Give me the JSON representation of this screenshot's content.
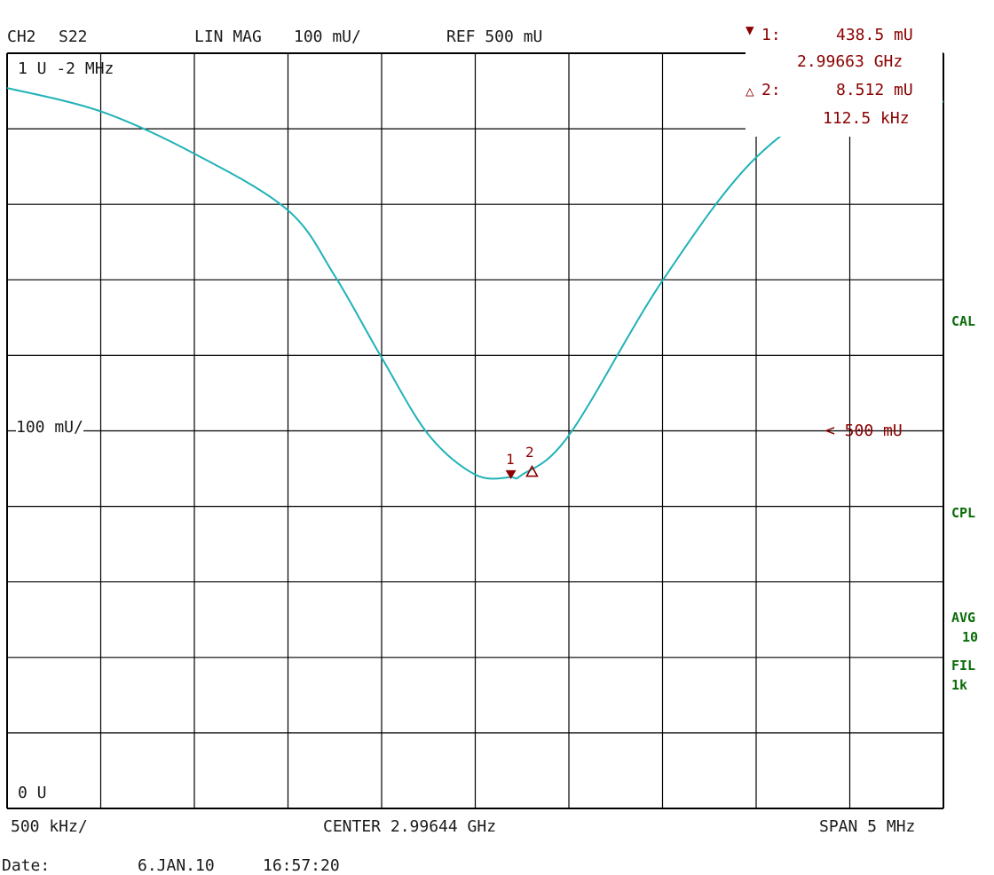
{
  "header": {
    "channel": "CH2",
    "param": "S22",
    "format": "LIN MAG",
    "scale": "100 mU/",
    "ref": "REF 500 mU"
  },
  "markers": {
    "m1": {
      "label": "1:",
      "value": "438.5 mU",
      "freq": "2.99663 GHz"
    },
    "m2": {
      "label": "2:",
      "value": "8.512 mU",
      "freq": "112.5 kHz"
    },
    "m1_tag": "1",
    "m2_tag": "2"
  },
  "grid_labels": {
    "top_left": "1 U -2 MHz",
    "scale_mid": "100 mU/",
    "bottom_left": "0 U",
    "ref_right": "< 500 mU"
  },
  "side_labels": {
    "cal": "CAL",
    "cpl": "CPL",
    "avg": "AVG",
    "avg_n": "10",
    "fil": "FIL",
    "fil_bw": "1k"
  },
  "footer": {
    "per_div": "500 kHz/",
    "center": "CENTER 2.99644 GHz",
    "span": "SPAN 5 MHz",
    "date_label": "Date:",
    "date": "6.JAN.10",
    "time": "16:57:20"
  },
  "colors": {
    "trace": "#20b2b8",
    "marker": "#8b0000",
    "grid": "#000000",
    "status": "#0a6b0a"
  },
  "chart_data": {
    "type": "line",
    "xlabel": "",
    "ylabel": "",
    "xlim": [
      2.99394,
      2.99894
    ],
    "ylim": [
      0,
      1
    ],
    "x_unit": "GHz",
    "y_unit": "U",
    "grid": true,
    "series": [
      {
        "x": [
          2.99394,
          2.99444,
          2.99494,
          2.99544,
          2.99569,
          2.99594,
          2.99619,
          2.99644,
          2.99663,
          2.99669,
          2.99694,
          2.99744,
          2.99794,
          2.99844,
          2.99894
        ],
        "y": [
          0.954,
          0.923,
          0.867,
          0.792,
          0.705,
          0.597,
          0.495,
          0.442,
          0.4385,
          0.442,
          0.494,
          0.699,
          0.862,
          0.94,
          0.936
        ]
      }
    ],
    "markers": [
      {
        "id": "1",
        "x": 2.99663,
        "y": 0.4385
      },
      {
        "id": "2",
        "x": 2.996743,
        "y": 0.447
      }
    ]
  }
}
